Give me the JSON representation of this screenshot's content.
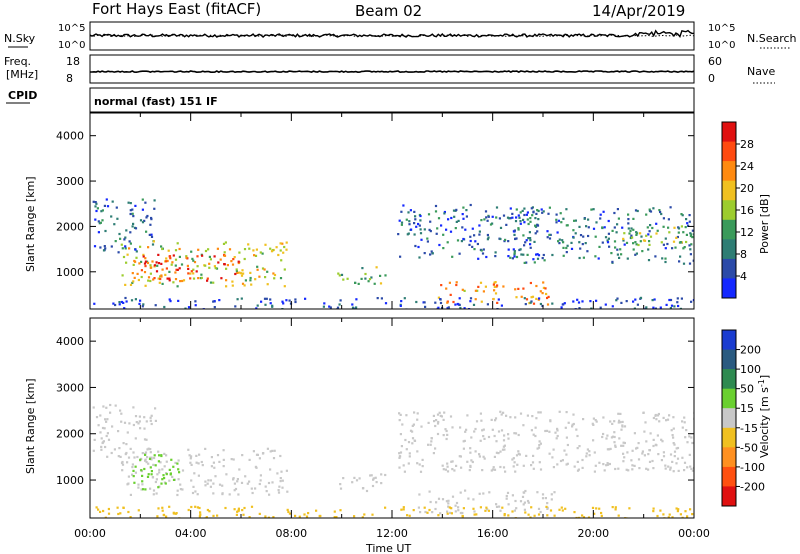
{
  "header": {
    "station": "Fort Hays East (fitACF)",
    "beam": "Beam 02",
    "date": "14/Apr/2019"
  },
  "status_rows": {
    "nsky_label": "N.Sky",
    "nsky_ticks": [
      "10^5",
      "10^0"
    ],
    "nsearch_label": "N.Search",
    "nsearch_ticks": [
      "10^5",
      "10^0"
    ],
    "freq_label_1": "Freq.",
    "freq_label_2": "[MHz]",
    "freq_ticks": [
      "18",
      "8"
    ],
    "nave_label": "Nave",
    "nave_ticks": [
      "60",
      "0"
    ],
    "cpid_label": "CPID",
    "cpid_value": "normal (fast) 151 IF"
  },
  "chart_data": [
    {
      "type": "heatmap",
      "title": "",
      "xlabel": "",
      "ylabel": "Slant Range [km]",
      "xlim": [
        "00:00",
        "24:00"
      ],
      "ylim": [
        180,
        4500
      ],
      "yticks": [
        1000,
        2000,
        3000,
        4000
      ],
      "colorbar": {
        "label": "Power [dB]",
        "ticks": [
          "4",
          "8",
          "12",
          "16",
          "20",
          "24",
          "28"
        ],
        "colors": [
          "#1428ff",
          "#2b4aa8",
          "#2e7d74",
          "#3a9a5a",
          "#9ccc2e",
          "#f0c020",
          "#ff8a10",
          "#ff4a10",
          "#e01010"
        ]
      },
      "echo_regions": [
        {
          "t_start": 0.1,
          "t_end": 2.6,
          "r_min": 1450,
          "r_max": 2650,
          "power": 8
        },
        {
          "t_start": 1.2,
          "t_end": 7.8,
          "r_min": 700,
          "r_max": 1700,
          "power": 18
        },
        {
          "t_start": 2.0,
          "t_end": 6.0,
          "r_min": 800,
          "r_max": 1400,
          "power": 27
        },
        {
          "t_start": 9.8,
          "t_end": 11.8,
          "r_min": 750,
          "r_max": 1150,
          "power": 14
        },
        {
          "t_start": 12.2,
          "t_end": 17.8,
          "r_min": 1300,
          "r_max": 2500,
          "power": 8
        },
        {
          "t_start": 13.8,
          "t_end": 18.2,
          "r_min": 300,
          "r_max": 800,
          "power": 22
        },
        {
          "t_start": 16.8,
          "t_end": 24.0,
          "r_min": 1200,
          "r_max": 2450,
          "power": 9
        },
        {
          "t_start": 21.0,
          "t_end": 24.0,
          "r_min": 1600,
          "r_max": 2050,
          "power": 16
        },
        {
          "t_start": 0.0,
          "t_end": 24.0,
          "r_min": 180,
          "r_max": 450,
          "power": 6
        }
      ]
    },
    {
      "type": "heatmap",
      "title": "",
      "xlabel": "Time UT",
      "ylabel": "Slant Range [km]",
      "xlim": [
        "00:00",
        "24:00"
      ],
      "ylim": [
        180,
        4500
      ],
      "yticks": [
        1000,
        2000,
        3000,
        4000
      ],
      "xticks": [
        "00:00",
        "04:00",
        "08:00",
        "12:00",
        "16:00",
        "20:00",
        "00:00"
      ],
      "colorbar": {
        "label": "Velocity [m s^-1]",
        "ticks": [
          "200",
          "100",
          "50",
          "15",
          "-15",
          "-50",
          "-100",
          "-200"
        ],
        "colors": [
          "#1a3cd0",
          "#2a5a80",
          "#2e8a50",
          "#6ad030",
          "#c8c8c8",
          "#f0c020",
          "#ff9020",
          "#ff5010",
          "#e01010"
        ]
      },
      "echo_regions": [
        {
          "t_start": 0.1,
          "t_end": 2.6,
          "r_min": 1450,
          "r_max": 2650,
          "velocity": 0
        },
        {
          "t_start": 1.2,
          "t_end": 7.8,
          "r_min": 700,
          "r_max": 1700,
          "velocity": 0
        },
        {
          "t_start": 1.5,
          "t_end": 3.5,
          "r_min": 800,
          "r_max": 1600,
          "velocity": 30
        },
        {
          "t_start": 9.8,
          "t_end": 11.8,
          "r_min": 750,
          "r_max": 1150,
          "velocity": 0
        },
        {
          "t_start": 12.2,
          "t_end": 24.0,
          "r_min": 1200,
          "r_max": 2500,
          "velocity": 0
        },
        {
          "t_start": 13.0,
          "t_end": 18.5,
          "r_min": 300,
          "r_max": 800,
          "velocity": 0
        },
        {
          "t_start": 0.0,
          "t_end": 24.0,
          "r_min": 180,
          "r_max": 450,
          "velocity": -30
        }
      ]
    }
  ]
}
